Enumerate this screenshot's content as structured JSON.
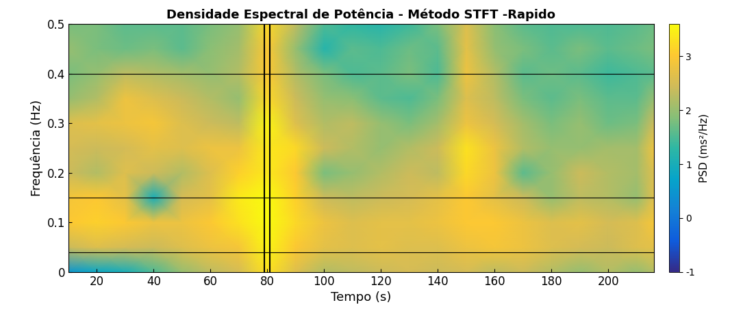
{
  "chart_data": {
    "type": "heatmap",
    "title": "Densidade Espectral de Potência - Método STFT -Rapido",
    "x_label": "Tempo (s)",
    "y_label": "Frequência (Hz)",
    "colorbar_label": "PSD (ms²/Hz)",
    "x": [
      10,
      20,
      30,
      40,
      50,
      60,
      70,
      80,
      90,
      100,
      110,
      120,
      130,
      140,
      150,
      160,
      170,
      180,
      190,
      200,
      210,
      216
    ],
    "y": [
      0,
      0.05,
      0.1,
      0.15,
      0.2,
      0.25,
      0.3,
      0.35,
      0.4,
      0.45,
      0.5
    ],
    "cells": [
      [
        0.5,
        0.8,
        1.0,
        1.5,
        2.0,
        2.3,
        2.5,
        3.3,
        2.6,
        2.2,
        2.3,
        2.4,
        2.5,
        2.4,
        2.5,
        2.3,
        2.4,
        2.2,
        2.0,
        2.2,
        2.0,
        2.2
      ],
      [
        2.4,
        2.6,
        2.5,
        2.4,
        2.6,
        2.8,
        2.9,
        3.5,
        3.0,
        2.7,
        2.6,
        2.7,
        2.6,
        2.6,
        2.8,
        2.9,
        2.8,
        2.6,
        2.5,
        2.4,
        2.6,
        2.7
      ],
      [
        3.0,
        3.1,
        3.0,
        2.8,
        2.8,
        3.0,
        3.3,
        3.6,
        3.2,
        2.8,
        2.6,
        2.7,
        2.7,
        2.8,
        3.0,
        3.0,
        2.8,
        2.6,
        2.7,
        2.5,
        2.6,
        2.9
      ],
      [
        2.9,
        3.0,
        2.7,
        1.0,
        2.5,
        2.7,
        3.4,
        3.6,
        3.1,
        2.4,
        2.3,
        2.4,
        2.5,
        2.7,
        3.0,
        2.7,
        2.4,
        2.0,
        2.3,
        2.2,
        2.0,
        2.6
      ],
      [
        2.4,
        2.2,
        2.6,
        2.4,
        2.2,
        2.6,
        3.1,
        3.4,
        3.0,
        1.8,
        2.0,
        2.2,
        2.4,
        2.3,
        3.2,
        2.8,
        1.6,
        2.0,
        2.4,
        2.2,
        2.1,
        2.6
      ],
      [
        2.5,
        2.4,
        2.5,
        2.7,
        2.6,
        2.8,
        2.8,
        3.4,
        3.2,
        2.4,
        2.2,
        2.0,
        2.2,
        2.4,
        3.3,
        2.8,
        2.2,
        2.0,
        2.0,
        2.1,
        2.1,
        2.8
      ],
      [
        2.6,
        2.7,
        2.8,
        2.9,
        2.6,
        2.4,
        2.3,
        3.5,
        2.6,
        2.2,
        2.3,
        2.0,
        1.8,
        2.1,
        2.8,
        2.5,
        2.1,
        1.8,
        2.0,
        1.7,
        1.8,
        2.4
      ],
      [
        2.0,
        2.2,
        2.8,
        2.6,
        2.4,
        2.2,
        2.0,
        3.2,
        2.4,
        2.0,
        1.9,
        1.6,
        1.5,
        1.8,
        2.6,
        2.3,
        1.8,
        1.6,
        1.8,
        1.6,
        1.6,
        2.0
      ],
      [
        1.8,
        2.0,
        2.3,
        2.2,
        2.1,
        2.0,
        2.2,
        3.0,
        2.2,
        1.8,
        1.5,
        1.6,
        1.8,
        1.5,
        2.8,
        2.2,
        1.6,
        1.7,
        1.6,
        1.4,
        1.5,
        1.6
      ],
      [
        2.0,
        1.8,
        1.7,
        1.8,
        1.6,
        1.9,
        2.1,
        3.0,
        2.0,
        1.2,
        1.6,
        1.5,
        1.7,
        1.6,
        2.7,
        2.0,
        1.8,
        1.6,
        1.8,
        1.6,
        1.7,
        1.8
      ],
      [
        1.8,
        1.8,
        1.6,
        1.6,
        1.6,
        1.8,
        2.0,
        3.2,
        2.3,
        1.5,
        1.3,
        1.2,
        1.4,
        1.8,
        2.6,
        1.9,
        1.6,
        1.5,
        1.5,
        1.5,
        1.6,
        1.7
      ]
    ],
    "hlines": [
      0.04,
      0.15,
      0.4
    ],
    "vlines": [
      79,
      81
    ],
    "xlim": [
      10,
      216
    ],
    "ylim": [
      0,
      0.5
    ],
    "xticks": [
      20,
      40,
      60,
      80,
      100,
      120,
      140,
      160,
      180,
      200
    ],
    "yticks": [
      0,
      0.1,
      0.2,
      0.3,
      0.4,
      0.5
    ],
    "color_range": [
      -1,
      3.6
    ],
    "color_ticks": [
      -1,
      0,
      1,
      2,
      3
    ]
  }
}
